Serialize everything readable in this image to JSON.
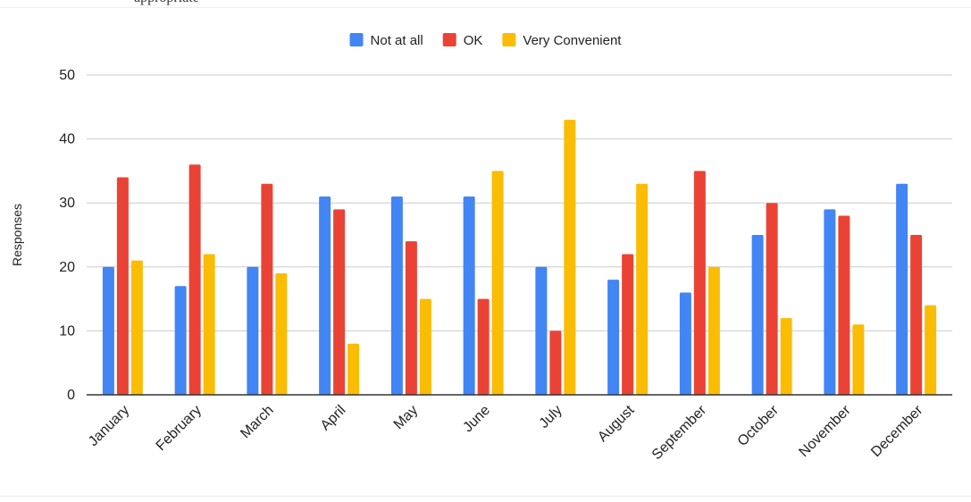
{
  "header_fragment": "appropriate",
  "colors": {
    "background": "#ffffff",
    "grid": "#cccccc",
    "axis": "#333333",
    "text": "#222222"
  },
  "chart_data": {
    "type": "bar",
    "title": "",
    "xlabel": "",
    "ylabel": "Responses",
    "ylim": [
      0,
      50
    ],
    "yticks": [
      0,
      10,
      20,
      30,
      40,
      50
    ],
    "grid": true,
    "legend_position": "top",
    "categories": [
      "January",
      "February",
      "March",
      "April",
      "May",
      "June",
      "July",
      "August",
      "September",
      "October",
      "November",
      "December"
    ],
    "series": [
      {
        "name": "Not at all",
        "color": "#4285f4",
        "values": [
          20,
          17,
          20,
          31,
          31,
          31,
          20,
          18,
          16,
          25,
          29,
          33
        ]
      },
      {
        "name": "OK",
        "color": "#ea4335",
        "values": [
          34,
          36,
          33,
          29,
          24,
          15,
          10,
          22,
          35,
          30,
          28,
          25
        ]
      },
      {
        "name": "Very Convenient",
        "color": "#fbbc04",
        "values": [
          21,
          22,
          19,
          8,
          15,
          35,
          43,
          33,
          20,
          12,
          11,
          14
        ]
      }
    ]
  }
}
